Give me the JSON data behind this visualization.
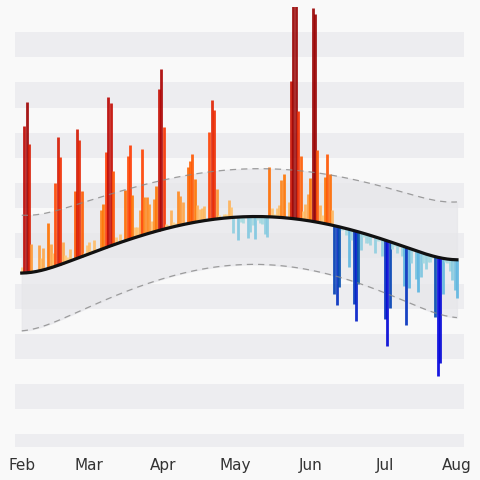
{
  "n_days": 182,
  "month_positions": [
    0,
    28,
    59,
    89,
    120,
    151,
    181
  ],
  "month_labels": [
    "Feb",
    "Mar",
    "Apr",
    "May",
    "Jun",
    "Jul",
    "Aug"
  ],
  "background_color": "#f9f9f9",
  "band_fill_color": "#e8e8ec",
  "baseline_color": "#111111",
  "dashed_color": "#888888",
  "xlim": [
    -3,
    184
  ],
  "ylim": [
    -7.5,
    10.0
  ]
}
